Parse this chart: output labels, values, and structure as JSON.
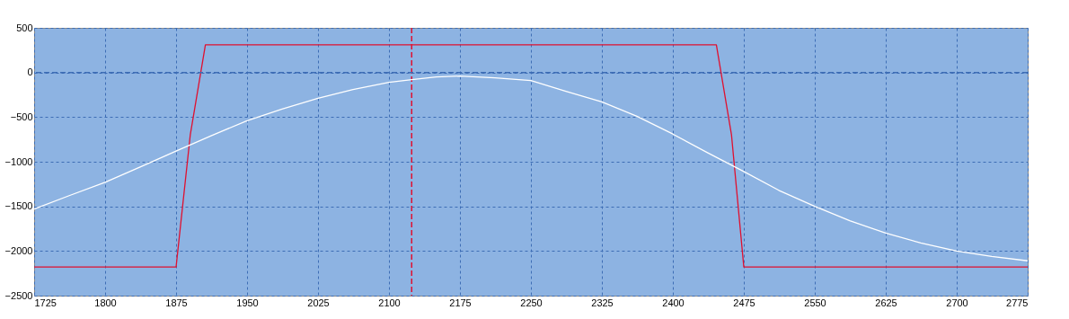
{
  "chart_data": {
    "type": "line",
    "series": [
      {
        "color": "#e0102f",
        "x": [
          1725,
          1875,
          1890,
          1906,
          2446,
          2462,
          2475,
          2775
        ],
        "values": [
          -2180,
          -2180,
          -700,
          310,
          310,
          -700,
          -2180,
          -2180
        ]
      },
      {
        "color": "#ffffff",
        "x": [
          1725,
          1762,
          1800,
          1837,
          1875,
          1912,
          1950,
          1987,
          2025,
          2062,
          2100,
          2124,
          2150,
          2175,
          2212,
          2250,
          2287,
          2325,
          2362,
          2400,
          2437,
          2475,
          2512,
          2550,
          2587,
          2625,
          2662,
          2700,
          2737,
          2775
        ],
        "values": [
          -1530,
          -1380,
          -1230,
          -1060,
          -880,
          -710,
          -540,
          -410,
          -290,
          -190,
          -110,
          -80,
          -50,
          -40,
          -60,
          -90,
          -210,
          -330,
          -490,
          -690,
          -900,
          -1110,
          -1320,
          -1500,
          -1660,
          -1800,
          -1910,
          -2000,
          -2060,
          -2110
        ]
      }
    ],
    "xlim": [
      1725,
      2775
    ],
    "xticks": [
      1725,
      1800,
      1875,
      1950,
      2025,
      2100,
      2175,
      2250,
      2325,
      2400,
      2475,
      2550,
      2625,
      2700,
      2775
    ],
    "ylim": [
      -2500,
      500
    ],
    "yticks": [
      -2500,
      -2000,
      -1500,
      -1000,
      -500,
      0,
      500
    ],
    "ref_lines": [
      {
        "axis": "y",
        "value": 0,
        "color": "#3d6db5",
        "line_style": "dashed"
      },
      {
        "axis": "x",
        "value": 2124,
        "color": "#e0102f",
        "line_style": "dashed"
      }
    ],
    "grid": true,
    "marker": "none",
    "line_style": "solid"
  }
}
